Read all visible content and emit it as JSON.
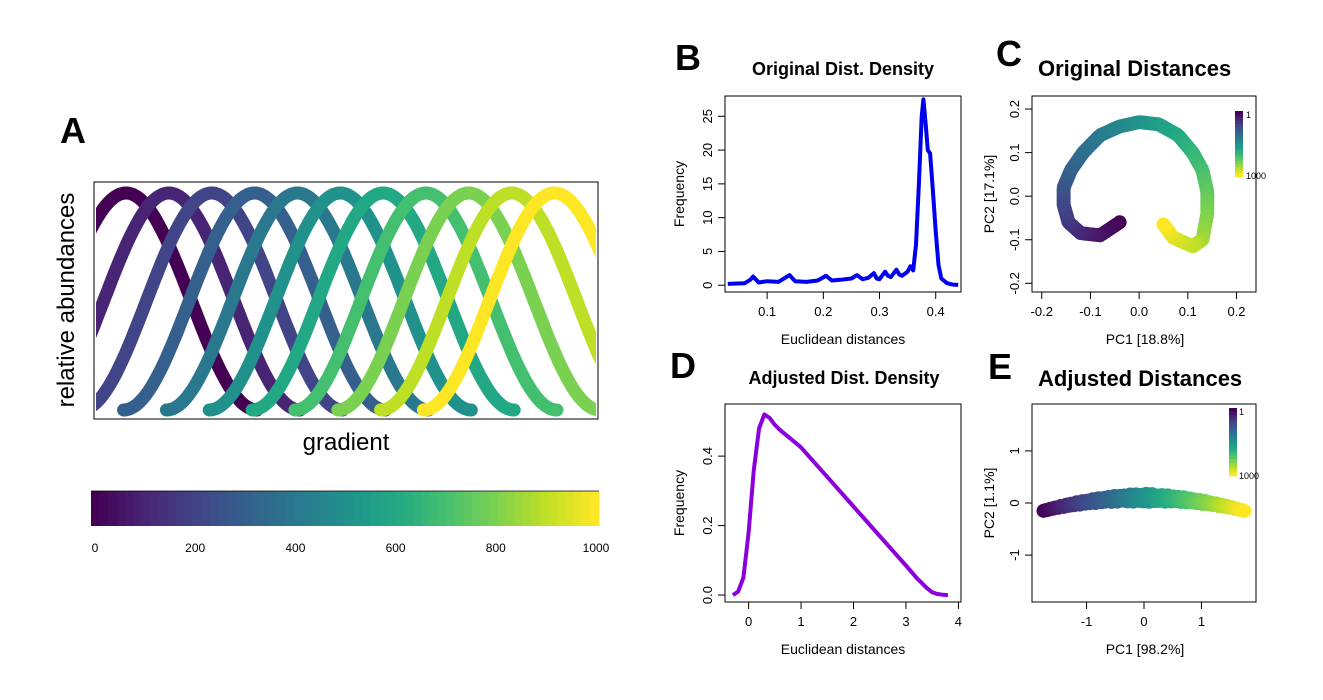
{
  "panels": {
    "A": {
      "letter": "A",
      "xlabel": "gradient",
      "ylabel": "relative abundances",
      "colorbar_ticks": [
        "0",
        "200",
        "400",
        "600",
        "800",
        "1000"
      ]
    },
    "B": {
      "letter": "B",
      "title": "Original Dist. Density",
      "xlabel": "Euclidean distances",
      "ylabel": "Frequency"
    },
    "C": {
      "letter": "C",
      "title": "Original Distances",
      "xlabel": "PC1 [18.8%]",
      "ylabel": "PC2 [17.1%]",
      "legend_top": "1",
      "legend_bottom": "1000"
    },
    "D": {
      "letter": "D",
      "title": "Adjusted Dist. Density",
      "xlabel": "Euclidean distances",
      "ylabel": "Frequency"
    },
    "E": {
      "letter": "E",
      "title": "Adjusted Distances",
      "xlabel": "PC1 [98.2%]",
      "ylabel": "PC2 [1.1%]",
      "legend_top": "1",
      "legend_bottom": "1000"
    }
  },
  "chart_data": [
    {
      "panel": "A",
      "type": "line",
      "xlabel": "gradient",
      "ylabel": "relative abundances",
      "n_species": 11,
      "species_peak_fraction": [
        0.02,
        0.105,
        0.19,
        0.275,
        0.36,
        0.445,
        0.53,
        0.615,
        0.7,
        0.785,
        0.87
      ],
      "colormap": "viridis",
      "colorbar_range": [
        0,
        1000
      ]
    },
    {
      "panel": "B",
      "type": "line",
      "title": "Original Dist. Density",
      "xlabel": "Euclidean distances",
      "ylabel": "Frequency",
      "color": "#0000ee",
      "xlim": [
        0.025,
        0.445
      ],
      "ylim": [
        -1,
        28
      ],
      "xticks": [
        0.1,
        0.2,
        0.3,
        0.4
      ],
      "yticks": [
        0,
        5,
        10,
        15,
        20,
        25
      ],
      "x": [
        0.03,
        0.06,
        0.07,
        0.075,
        0.085,
        0.1,
        0.12,
        0.14,
        0.143,
        0.15,
        0.17,
        0.19,
        0.205,
        0.215,
        0.23,
        0.25,
        0.26,
        0.27,
        0.28,
        0.29,
        0.295,
        0.3,
        0.31,
        0.315,
        0.32,
        0.33,
        0.335,
        0.34,
        0.35,
        0.355,
        0.36,
        0.365,
        0.37,
        0.375,
        0.378,
        0.382,
        0.386,
        0.39,
        0.395,
        0.4,
        0.405,
        0.41,
        0.42,
        0.43,
        0.44
      ],
      "y": [
        0.2,
        0.3,
        0.8,
        1.3,
        0.4,
        0.6,
        0.5,
        1.5,
        1.2,
        0.6,
        0.5,
        0.7,
        1.4,
        0.7,
        0.8,
        1.0,
        1.5,
        0.9,
        1.1,
        1.8,
        1.0,
        0.9,
        2.0,
        1.4,
        1.2,
        2.3,
        1.6,
        1.4,
        2.0,
        2.8,
        2.2,
        6.0,
        15.0,
        25.0,
        27.5,
        24.0,
        20.0,
        19.5,
        14.0,
        8.0,
        3.0,
        1.0,
        0.3,
        0.1,
        0.05
      ]
    },
    {
      "panel": "C",
      "type": "scatter",
      "title": "Original Distances",
      "xlabel": "PC1 [18.8%]",
      "ylabel": "PC2 [17.1%]",
      "xlim": [
        -0.22,
        0.24
      ],
      "ylim": [
        -0.22,
        0.23
      ],
      "xticks": [
        -0.2,
        -0.1,
        0.0,
        0.1,
        0.2
      ],
      "yticks": [
        -0.2,
        -0.1,
        0.0,
        0.1,
        0.2
      ],
      "n_points": 1000,
      "colormap": "viridis",
      "path_description_points": [
        [
          -0.04,
          -0.06
        ],
        [
          -0.08,
          -0.09
        ],
        [
          -0.12,
          -0.085
        ],
        [
          -0.145,
          -0.06
        ],
        [
          -0.155,
          -0.02
        ],
        [
          -0.155,
          0.02
        ],
        [
          -0.14,
          0.06
        ],
        [
          -0.115,
          0.1
        ],
        [
          -0.08,
          0.14
        ],
        [
          -0.04,
          0.16
        ],
        [
          0.0,
          0.17
        ],
        [
          0.04,
          0.165
        ],
        [
          0.08,
          0.14
        ],
        [
          0.11,
          0.1
        ],
        [
          0.13,
          0.06
        ],
        [
          0.14,
          0.01
        ],
        [
          0.14,
          -0.04
        ],
        [
          0.13,
          -0.1
        ],
        [
          0.11,
          -0.115
        ],
        [
          0.07,
          -0.095
        ],
        [
          0.05,
          -0.065
        ]
      ]
    },
    {
      "panel": "D",
      "type": "line",
      "title": "Adjusted Dist. Density",
      "xlabel": "Euclidean distances",
      "ylabel": "Frequency",
      "color": "#8a00dd",
      "xlim": [
        -0.45,
        4.05
      ],
      "ylim": [
        -0.02,
        0.55
      ],
      "xticks": [
        0,
        1,
        2,
        3,
        4
      ],
      "yticks": [
        0.0,
        0.2,
        0.4
      ],
      "x": [
        -0.3,
        -0.2,
        -0.1,
        0.0,
        0.1,
        0.2,
        0.3,
        0.4,
        0.5,
        0.6,
        0.8,
        1.0,
        1.5,
        2.0,
        2.5,
        3.0,
        3.2,
        3.4,
        3.5,
        3.6,
        3.7,
        3.8
      ],
      "y": [
        0.0,
        0.01,
        0.05,
        0.18,
        0.36,
        0.48,
        0.52,
        0.51,
        0.49,
        0.475,
        0.45,
        0.425,
        0.34,
        0.255,
        0.17,
        0.085,
        0.05,
        0.02,
        0.008,
        0.003,
        0.001,
        0.0
      ]
    },
    {
      "panel": "E",
      "type": "scatter",
      "title": "Adjusted Distances",
      "xlabel": "PC1 [98.2%]",
      "ylabel": "PC2 [1.1%]",
      "xlim": [
        -1.95,
        1.95
      ],
      "ylim": [
        -1.9,
        1.9
      ],
      "xticks": [
        -1,
        0,
        1
      ],
      "yticks": [
        -1,
        0,
        1
      ],
      "n_points": 1000,
      "colormap": "viridis",
      "x_range": [
        -1.75,
        1.75
      ],
      "y_peak": 0.1,
      "y_ends": -0.15
    }
  ]
}
